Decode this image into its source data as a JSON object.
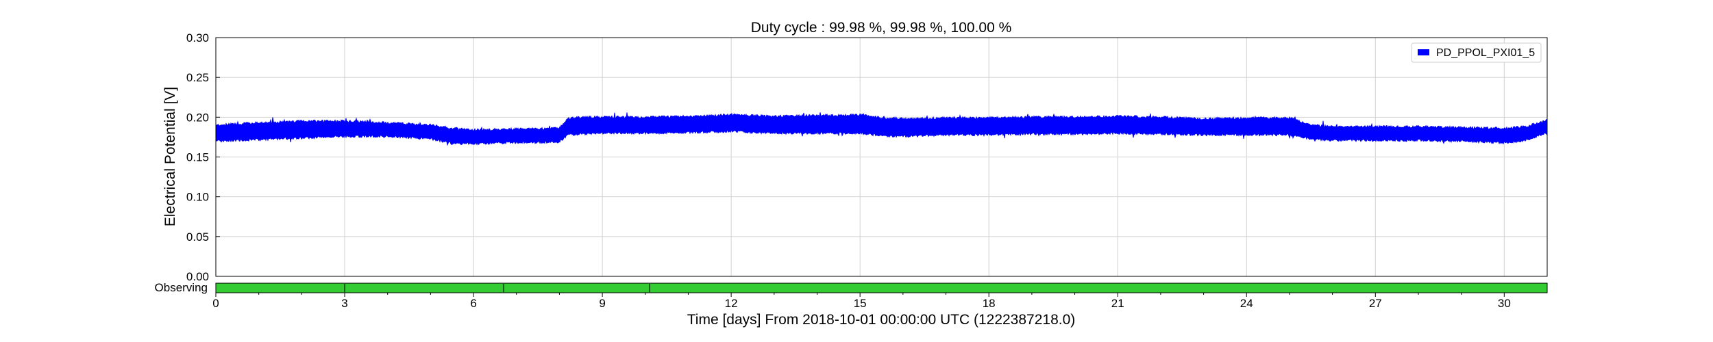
{
  "chart_data": {
    "type": "line",
    "title": "Duty cycle : 99.98 %, 99.98 %, 100.00 %",
    "xlabel": "Time [days] From 2018-10-01 00:00:00 UTC (1222387218.0)",
    "ylabel": "Electrical Potential [V]",
    "xlim": [
      0,
      31
    ],
    "ylim": [
      0,
      0.3
    ],
    "x_ticks": [
      0,
      3,
      6,
      9,
      12,
      15,
      18,
      21,
      24,
      27,
      30
    ],
    "y_ticks": [
      "0.00",
      "0.05",
      "0.10",
      "0.15",
      "0.20",
      "0.25",
      "0.30"
    ],
    "grid": true,
    "legend_position": "top-right",
    "series": [
      {
        "name": "PD_PPOL_PXI01_5",
        "color": "#0000ff",
        "x": [
          0,
          1,
          2,
          3,
          4,
          5,
          5.5,
          6,
          7,
          8,
          8.2,
          8.5,
          9,
          10,
          11,
          12,
          13,
          14,
          15,
          15.5,
          16,
          17,
          18,
          19,
          20,
          21,
          22,
          23,
          24,
          25,
          25.5,
          26,
          27,
          28,
          29,
          30,
          30.5,
          31
        ],
        "upper": [
          0.19,
          0.193,
          0.195,
          0.195,
          0.193,
          0.19,
          0.186,
          0.184,
          0.185,
          0.186,
          0.198,
          0.2,
          0.2,
          0.2,
          0.201,
          0.203,
          0.201,
          0.202,
          0.203,
          0.199,
          0.198,
          0.199,
          0.199,
          0.2,
          0.2,
          0.201,
          0.2,
          0.198,
          0.199,
          0.199,
          0.19,
          0.188,
          0.188,
          0.188,
          0.187,
          0.186,
          0.188,
          0.196
        ],
        "lower": [
          0.17,
          0.172,
          0.174,
          0.176,
          0.176,
          0.173,
          0.167,
          0.167,
          0.168,
          0.169,
          0.178,
          0.179,
          0.18,
          0.18,
          0.181,
          0.182,
          0.18,
          0.18,
          0.18,
          0.177,
          0.176,
          0.178,
          0.178,
          0.179,
          0.179,
          0.18,
          0.179,
          0.178,
          0.178,
          0.178,
          0.173,
          0.171,
          0.171,
          0.171,
          0.17,
          0.168,
          0.171,
          0.18
        ]
      }
    ],
    "segment_bar": {
      "label": "Observing",
      "color": "#33cc33",
      "gap_marks": [
        3,
        6.7,
        10.1
      ]
    }
  }
}
